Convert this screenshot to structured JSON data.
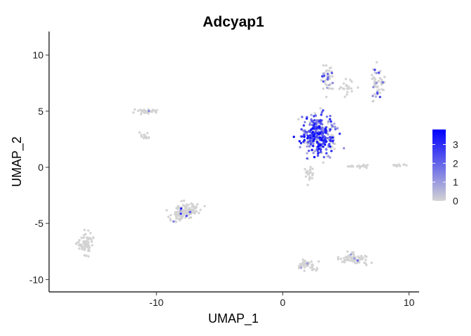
{
  "chart_data": {
    "type": "scatter",
    "title": "Adcyap1",
    "xlabel": "UMAP_1",
    "ylabel": "UMAP_2",
    "xlim": [
      -18.5,
      10.8
    ],
    "ylim": [
      -11.1,
      12.1
    ],
    "xticks": [
      -10,
      0,
      10
    ],
    "xtick_labels": [
      "-10",
      "0",
      "10"
    ],
    "yticks": [
      -10,
      -5,
      0,
      5,
      10
    ],
    "ytick_labels": [
      "-10",
      "-5",
      "0",
      "5",
      "10"
    ],
    "grid": false,
    "color_scale": {
      "low_color": "#d3d3d3",
      "high_color": "#0000ff",
      "min": 0,
      "max": 3.8,
      "legend_ticks": [
        0,
        1,
        2,
        3
      ],
      "legend_labels": [
        "0",
        "1",
        "2",
        "3"
      ],
      "legend_position": "right"
    },
    "clusters": [
      {
        "cx": -15.6,
        "cy": -6.8,
        "sx": 0.45,
        "sy": 0.85,
        "n": 70,
        "expr_frac": 0.0,
        "expr_max": 0
      },
      {
        "cx": -7.8,
        "cy": -4.0,
        "sx": 1.0,
        "sy": 0.55,
        "n": 150,
        "expr_frac": 0.03,
        "expr_max": 3.6,
        "rot": 0.45
      },
      {
        "cx": -10.8,
        "cy": 5.0,
        "sx": 0.8,
        "sy": 0.18,
        "n": 30,
        "expr_frac": 0.05,
        "expr_max": 1.5
      },
      {
        "cx": -10.9,
        "cy": 2.7,
        "sx": 0.4,
        "sy": 0.3,
        "n": 12,
        "expr_frac": 0.0,
        "expr_max": 0
      },
      {
        "cx": 1.9,
        "cy": -8.7,
        "sx": 0.7,
        "sy": 0.35,
        "n": 45,
        "expr_frac": 0.05,
        "expr_max": 2.0
      },
      {
        "cx": 5.6,
        "cy": -8.1,
        "sx": 0.95,
        "sy": 0.45,
        "n": 70,
        "expr_frac": 0.05,
        "expr_max": 2.0
      },
      {
        "cx": 2.8,
        "cy": 2.9,
        "sx": 1.1,
        "sy": 1.45,
        "n": 330,
        "expr_frac": 0.8,
        "expr_max": 3.8
      },
      {
        "cx": 2.1,
        "cy": -0.5,
        "sx": 0.3,
        "sy": 0.7,
        "n": 25,
        "expr_frac": 0.0,
        "expr_max": 0
      },
      {
        "cx": 3.6,
        "cy": 7.9,
        "sx": 0.4,
        "sy": 1.2,
        "n": 45,
        "expr_frac": 0.2,
        "expr_max": 3.0
      },
      {
        "cx": 5.2,
        "cy": 7.0,
        "sx": 0.5,
        "sy": 0.8,
        "n": 20,
        "expr_frac": 0.05,
        "expr_max": 2.0
      },
      {
        "cx": 7.5,
        "cy": 7.5,
        "sx": 0.5,
        "sy": 1.4,
        "n": 50,
        "expr_frac": 0.2,
        "expr_max": 3.0
      },
      {
        "cx": 6.3,
        "cy": 0.1,
        "sx": 0.9,
        "sy": 0.12,
        "n": 18,
        "expr_frac": 0.0,
        "expr_max": 0
      },
      {
        "cx": 9.0,
        "cy": 0.2,
        "sx": 0.6,
        "sy": 0.12,
        "n": 12,
        "expr_frac": 0.0,
        "expr_max": 0
      }
    ]
  }
}
